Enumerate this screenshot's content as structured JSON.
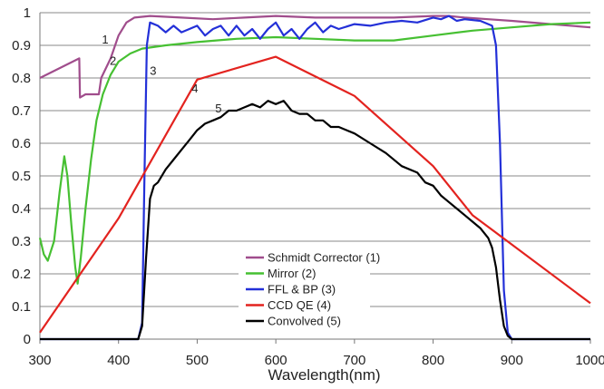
{
  "chart_data": {
    "type": "line",
    "title": "",
    "xlabel": "Wavelength(nm)",
    "ylabel": "",
    "xlim": [
      300,
      1000
    ],
    "ylim": [
      0,
      1
    ],
    "xticks": [
      300,
      400,
      500,
      600,
      700,
      800,
      900,
      1000
    ],
    "yticks": [
      0,
      0.1,
      0.2,
      0.3,
      0.4,
      0.5,
      0.6,
      0.7,
      0.8,
      0.9,
      1
    ],
    "ytick_labels": [
      "0",
      "0.1",
      "0.2",
      "0.3",
      "0.4",
      "0.5",
      "0.6",
      "0.7",
      "0.8",
      "0.9",
      "1"
    ],
    "grid": "horizontal",
    "legend_position": "bottom-center-inside",
    "series": [
      {
        "name": "Schmidt Corrector (1)",
        "color": "#a04d8c",
        "label": "1",
        "points": [
          [
            300,
            0.8
          ],
          [
            350,
            0.86
          ],
          [
            351,
            0.74
          ],
          [
            358,
            0.75
          ],
          [
            375,
            0.75
          ],
          [
            378,
            0.8
          ],
          [
            390,
            0.86
          ],
          [
            400,
            0.93
          ],
          [
            410,
            0.97
          ],
          [
            420,
            0.985
          ],
          [
            440,
            0.99
          ],
          [
            480,
            0.985
          ],
          [
            520,
            0.98
          ],
          [
            560,
            0.985
          ],
          [
            600,
            0.99
          ],
          [
            650,
            0.985
          ],
          [
            700,
            0.985
          ],
          [
            750,
            0.985
          ],
          [
            800,
            0.99
          ],
          [
            820,
            0.99
          ],
          [
            840,
            0.985
          ],
          [
            870,
            0.98
          ],
          [
            900,
            0.975
          ],
          [
            950,
            0.965
          ],
          [
            1000,
            0.955
          ]
        ]
      },
      {
        "name": "Mirror (2)",
        "color": "#46c032",
        "label": "2",
        "points": [
          [
            300,
            0.31
          ],
          [
            305,
            0.26
          ],
          [
            310,
            0.24
          ],
          [
            318,
            0.3
          ],
          [
            325,
            0.45
          ],
          [
            331,
            0.56
          ],
          [
            335,
            0.5
          ],
          [
            340,
            0.35
          ],
          [
            345,
            0.22
          ],
          [
            348,
            0.17
          ],
          [
            352,
            0.25
          ],
          [
            358,
            0.4
          ],
          [
            365,
            0.55
          ],
          [
            372,
            0.67
          ],
          [
            380,
            0.75
          ],
          [
            390,
            0.81
          ],
          [
            400,
            0.85
          ],
          [
            415,
            0.875
          ],
          [
            430,
            0.89
          ],
          [
            460,
            0.9
          ],
          [
            500,
            0.91
          ],
          [
            550,
            0.92
          ],
          [
            600,
            0.925
          ],
          [
            650,
            0.92
          ],
          [
            700,
            0.915
          ],
          [
            750,
            0.915
          ],
          [
            800,
            0.93
          ],
          [
            850,
            0.945
          ],
          [
            900,
            0.955
          ],
          [
            950,
            0.965
          ],
          [
            1000,
            0.97
          ]
        ]
      },
      {
        "name": "FFL & BP (3)",
        "color": "#2330d8",
        "label": "3",
        "points": [
          [
            300,
            0.0
          ],
          [
            425,
            0.0
          ],
          [
            430,
            0.05
          ],
          [
            433,
            0.5
          ],
          [
            436,
            0.9
          ],
          [
            440,
            0.97
          ],
          [
            450,
            0.96
          ],
          [
            460,
            0.94
          ],
          [
            470,
            0.96
          ],
          [
            480,
            0.94
          ],
          [
            490,
            0.95
          ],
          [
            500,
            0.96
          ],
          [
            510,
            0.93
          ],
          [
            520,
            0.95
          ],
          [
            530,
            0.96
          ],
          [
            540,
            0.93
          ],
          [
            550,
            0.96
          ],
          [
            560,
            0.93
          ],
          [
            570,
            0.95
          ],
          [
            580,
            0.92
          ],
          [
            590,
            0.95
          ],
          [
            600,
            0.97
          ],
          [
            610,
            0.93
          ],
          [
            620,
            0.95
          ],
          [
            630,
            0.92
          ],
          [
            640,
            0.95
          ],
          [
            650,
            0.97
          ],
          [
            660,
            0.94
          ],
          [
            670,
            0.96
          ],
          [
            680,
            0.95
          ],
          [
            700,
            0.965
          ],
          [
            720,
            0.96
          ],
          [
            740,
            0.97
          ],
          [
            760,
            0.975
          ],
          [
            780,
            0.97
          ],
          [
            800,
            0.985
          ],
          [
            810,
            0.98
          ],
          [
            820,
            0.99
          ],
          [
            830,
            0.975
          ],
          [
            840,
            0.98
          ],
          [
            860,
            0.975
          ],
          [
            875,
            0.96
          ],
          [
            880,
            0.9
          ],
          [
            885,
            0.6
          ],
          [
            890,
            0.15
          ],
          [
            895,
            0.02
          ],
          [
            900,
            0.0
          ],
          [
            1000,
            0.0
          ]
        ]
      },
      {
        "name": "CCD QE (4)",
        "color": "#e3231f",
        "label": "4",
        "points": [
          [
            300,
            0.02
          ],
          [
            400,
            0.37
          ],
          [
            500,
            0.795
          ],
          [
            600,
            0.865
          ],
          [
            700,
            0.745
          ],
          [
            800,
            0.53
          ],
          [
            850,
            0.38
          ],
          [
            900,
            0.29
          ],
          [
            1000,
            0.11
          ]
        ]
      },
      {
        "name": "Convolved (5)",
        "color": "#000000",
        "label": "5",
        "points": [
          [
            300,
            0.0
          ],
          [
            425,
            0.0
          ],
          [
            430,
            0.04
          ],
          [
            435,
            0.25
          ],
          [
            440,
            0.43
          ],
          [
            445,
            0.47
          ],
          [
            450,
            0.48
          ],
          [
            460,
            0.52
          ],
          [
            470,
            0.55
          ],
          [
            480,
            0.58
          ],
          [
            490,
            0.61
          ],
          [
            500,
            0.64
          ],
          [
            510,
            0.66
          ],
          [
            520,
            0.67
          ],
          [
            530,
            0.68
          ],
          [
            540,
            0.7
          ],
          [
            550,
            0.7
          ],
          [
            560,
            0.71
          ],
          [
            570,
            0.72
          ],
          [
            580,
            0.71
          ],
          [
            590,
            0.73
          ],
          [
            600,
            0.72
          ],
          [
            610,
            0.73
          ],
          [
            620,
            0.7
          ],
          [
            630,
            0.69
          ],
          [
            640,
            0.69
          ],
          [
            650,
            0.67
          ],
          [
            660,
            0.67
          ],
          [
            670,
            0.65
          ],
          [
            680,
            0.65
          ],
          [
            690,
            0.64
          ],
          [
            700,
            0.63
          ],
          [
            720,
            0.6
          ],
          [
            740,
            0.57
          ],
          [
            760,
            0.53
          ],
          [
            780,
            0.51
          ],
          [
            790,
            0.48
          ],
          [
            800,
            0.47
          ],
          [
            810,
            0.44
          ],
          [
            820,
            0.42
          ],
          [
            830,
            0.4
          ],
          [
            840,
            0.38
          ],
          [
            850,
            0.36
          ],
          [
            860,
            0.34
          ],
          [
            870,
            0.31
          ],
          [
            875,
            0.28
          ],
          [
            880,
            0.22
          ],
          [
            885,
            0.12
          ],
          [
            890,
            0.04
          ],
          [
            895,
            0.01
          ],
          [
            900,
            0.0
          ],
          [
            1000,
            0.0
          ]
        ]
      }
    ],
    "annotations": [
      {
        "text": "1",
        "x": 383,
        "y": 0.905
      },
      {
        "text": "2",
        "x": 393,
        "y": 0.84
      },
      {
        "text": "3",
        "x": 444,
        "y": 0.81
      },
      {
        "text": "4",
        "x": 497,
        "y": 0.755
      },
      {
        "text": "5",
        "x": 527,
        "y": 0.695
      }
    ]
  }
}
